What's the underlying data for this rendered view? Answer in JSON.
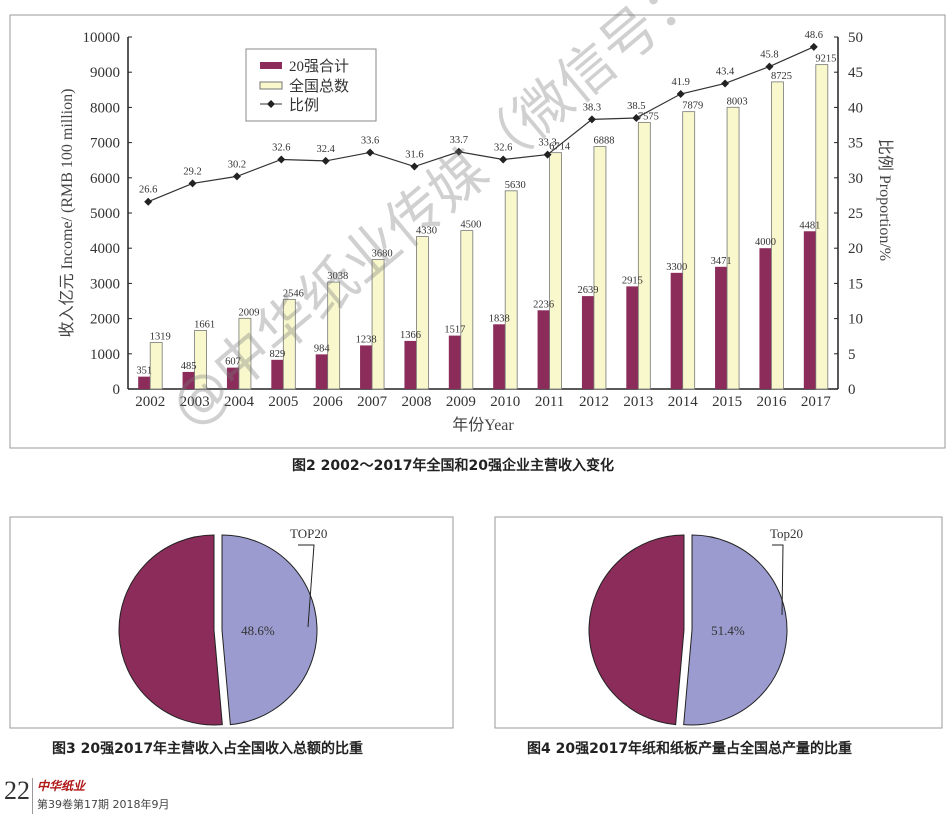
{
  "chart_data": [
    {
      "type": "bar",
      "categories": [
        "2002",
        "2003",
        "2004",
        "2005",
        "2006",
        "2007",
        "2008",
        "2009",
        "2010",
        "2011",
        "2012",
        "2013",
        "2014",
        "2015",
        "2016",
        "2017"
      ],
      "series": [
        {
          "name": "20强合计",
          "type": "bar",
          "axis": "left",
          "color": "#8b2c5a",
          "values": [
            351,
            485,
            607,
            829,
            984,
            1238,
            1366,
            1517,
            1838,
            2236,
            2639,
            2915,
            3300,
            3471,
            4000,
            4481
          ]
        },
        {
          "name": "全国总数",
          "type": "bar",
          "axis": "left",
          "color": "#f8f8cc",
          "values": [
            1319,
            1661,
            2009,
            2546,
            3038,
            3680,
            4330,
            4500,
            5630,
            6714,
            6888,
            7575,
            7879,
            8003,
            8725,
            9215
          ]
        },
        {
          "name": "比例",
          "type": "line",
          "axis": "right",
          "color": "#333333",
          "values": [
            26.6,
            29.2,
            30.2,
            32.6,
            32.4,
            33.6,
            31.6,
            33.7,
            32.6,
            33.3,
            38.3,
            38.5,
            41.9,
            43.4,
            45.8,
            48.6
          ]
        }
      ],
      "xlabel": "年份Year",
      "ylabel": "收入亿元 Income/ (RMB 100 million)",
      "y2label": "比例 Proportion/%",
      "ylim": [
        0,
        10000
      ],
      "yticks": [
        "0",
        "1000",
        "2000",
        "3000",
        "4000",
        "5000",
        "6000",
        "7000",
        "8000",
        "9000",
        "10000"
      ],
      "y2lim": [
        0,
        50
      ],
      "y2ticks": [
        "0",
        "5",
        "10",
        "15",
        "20",
        "25",
        "30",
        "35",
        "40",
        "45",
        "50"
      ],
      "legend_position": "top-left",
      "grid": false,
      "caption": "图2   2002～2017年全国和20强企业主营收入变化"
    },
    {
      "type": "pie",
      "slices": [
        {
          "label": "TOP20",
          "value": 48.6,
          "value_label": "48.6%",
          "color": "#9b9bd0"
        },
        {
          "label": "",
          "value": 51.4,
          "color": "#8b2c5a"
        }
      ],
      "caption": "图3   20强2017年主营收入占全国收入总额的比重"
    },
    {
      "type": "pie",
      "slices": [
        {
          "label": "Top20",
          "value": 51.4,
          "value_label": "51.4%",
          "color": "#9b9bd0"
        },
        {
          "label": "",
          "value": 48.6,
          "color": "#8b2c5a"
        }
      ],
      "caption": "图4   20强2017年纸和纸板产量占全国总产量的比重"
    }
  ],
  "footer": {
    "page_number": "22",
    "brand": "中华纸业",
    "issue": "第39卷第17期  2018年9月"
  },
  "watermark": "@中华纸业传媒（微信号：cppinet）"
}
